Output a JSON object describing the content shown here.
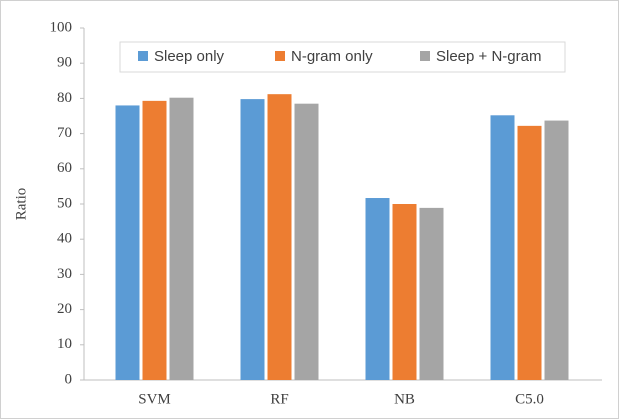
{
  "chart_data": {
    "type": "bar",
    "y_label": "Ratio",
    "categories": [
      "SVM",
      "RF",
      "NB",
      "C5.0"
    ],
    "series": [
      {
        "name": "Sleep only",
        "color": "#5b9bd5",
        "values": [
          78,
          79.8,
          51.7,
          75.2
        ]
      },
      {
        "name": "N-gram only",
        "color": "#ed7d31",
        "values": [
          79.3,
          81.2,
          50,
          72.2
        ]
      },
      {
        "name": "Sleep + N-gram",
        "color": "#a5a5a5",
        "values": [
          80.2,
          78.5,
          48.9,
          73.7
        ]
      }
    ],
    "ylim": [
      0,
      100
    ],
    "yticks": [
      0,
      10,
      20,
      30,
      40,
      50,
      60,
      70,
      80,
      90,
      100
    ],
    "grid": false,
    "legend": "top"
  }
}
